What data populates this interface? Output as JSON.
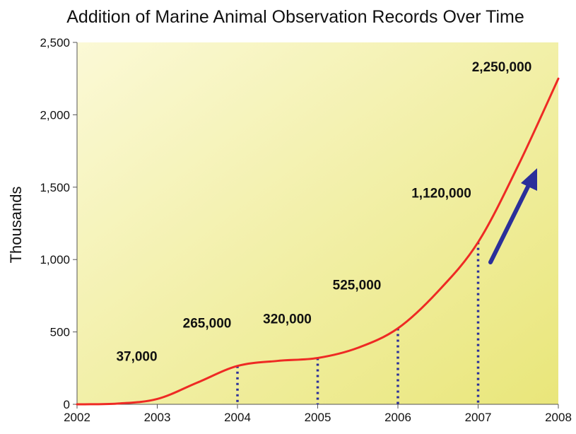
{
  "chart_data": {
    "type": "line",
    "title": "Addition of Marine Animal Observation Records Over Time",
    "ylabel": "Thousands",
    "xlabel": "",
    "x_ticks": [
      "2002",
      "2003",
      "2004",
      "2005",
      "2006",
      "2007",
      "2008"
    ],
    "y_ticks": [
      "0",
      "500",
      "1,000",
      "1,500",
      "2,000",
      "2,500"
    ],
    "xlim": [
      2002,
      2008
    ],
    "ylim": [
      0,
      2500
    ],
    "series": [
      {
        "color": "#ee2a24",
        "points": [
          {
            "x": 2002,
            "y": 0
          },
          {
            "x": 2002.5,
            "y": 5
          },
          {
            "x": 2003,
            "y": 37
          },
          {
            "x": 2003.5,
            "y": 150
          },
          {
            "x": 2004,
            "y": 265
          },
          {
            "x": 2004.5,
            "y": 300
          },
          {
            "x": 2005,
            "y": 320
          },
          {
            "x": 2005.5,
            "y": 390
          },
          {
            "x": 2006,
            "y": 525
          },
          {
            "x": 2006.5,
            "y": 780
          },
          {
            "x": 2007,
            "y": 1120
          },
          {
            "x": 2007.5,
            "y": 1650
          },
          {
            "x": 2008,
            "y": 2250
          }
        ]
      }
    ],
    "data_labels": [
      {
        "x": 2003,
        "y": 37,
        "text": "37,000"
      },
      {
        "x": 2004,
        "y": 265,
        "text": "265,000"
      },
      {
        "x": 2005,
        "y": 320,
        "text": "320,000"
      },
      {
        "x": 2006,
        "y": 525,
        "text": "525,000"
      },
      {
        "x": 2007,
        "y": 1120,
        "text": "1,120,000"
      },
      {
        "x": 2008,
        "y": 2250,
        "text": "2,250,000"
      }
    ],
    "dropline_years": [
      2004,
      2005,
      2006,
      2007
    ],
    "trend_arrow_color": "#2b2f9a",
    "line_color": "#ee2a24",
    "dropline_color": "#2b2f9a",
    "plot_background": [
      "#fbf9d6",
      "#e9e67a"
    ],
    "grid": false,
    "legend": "none"
  }
}
